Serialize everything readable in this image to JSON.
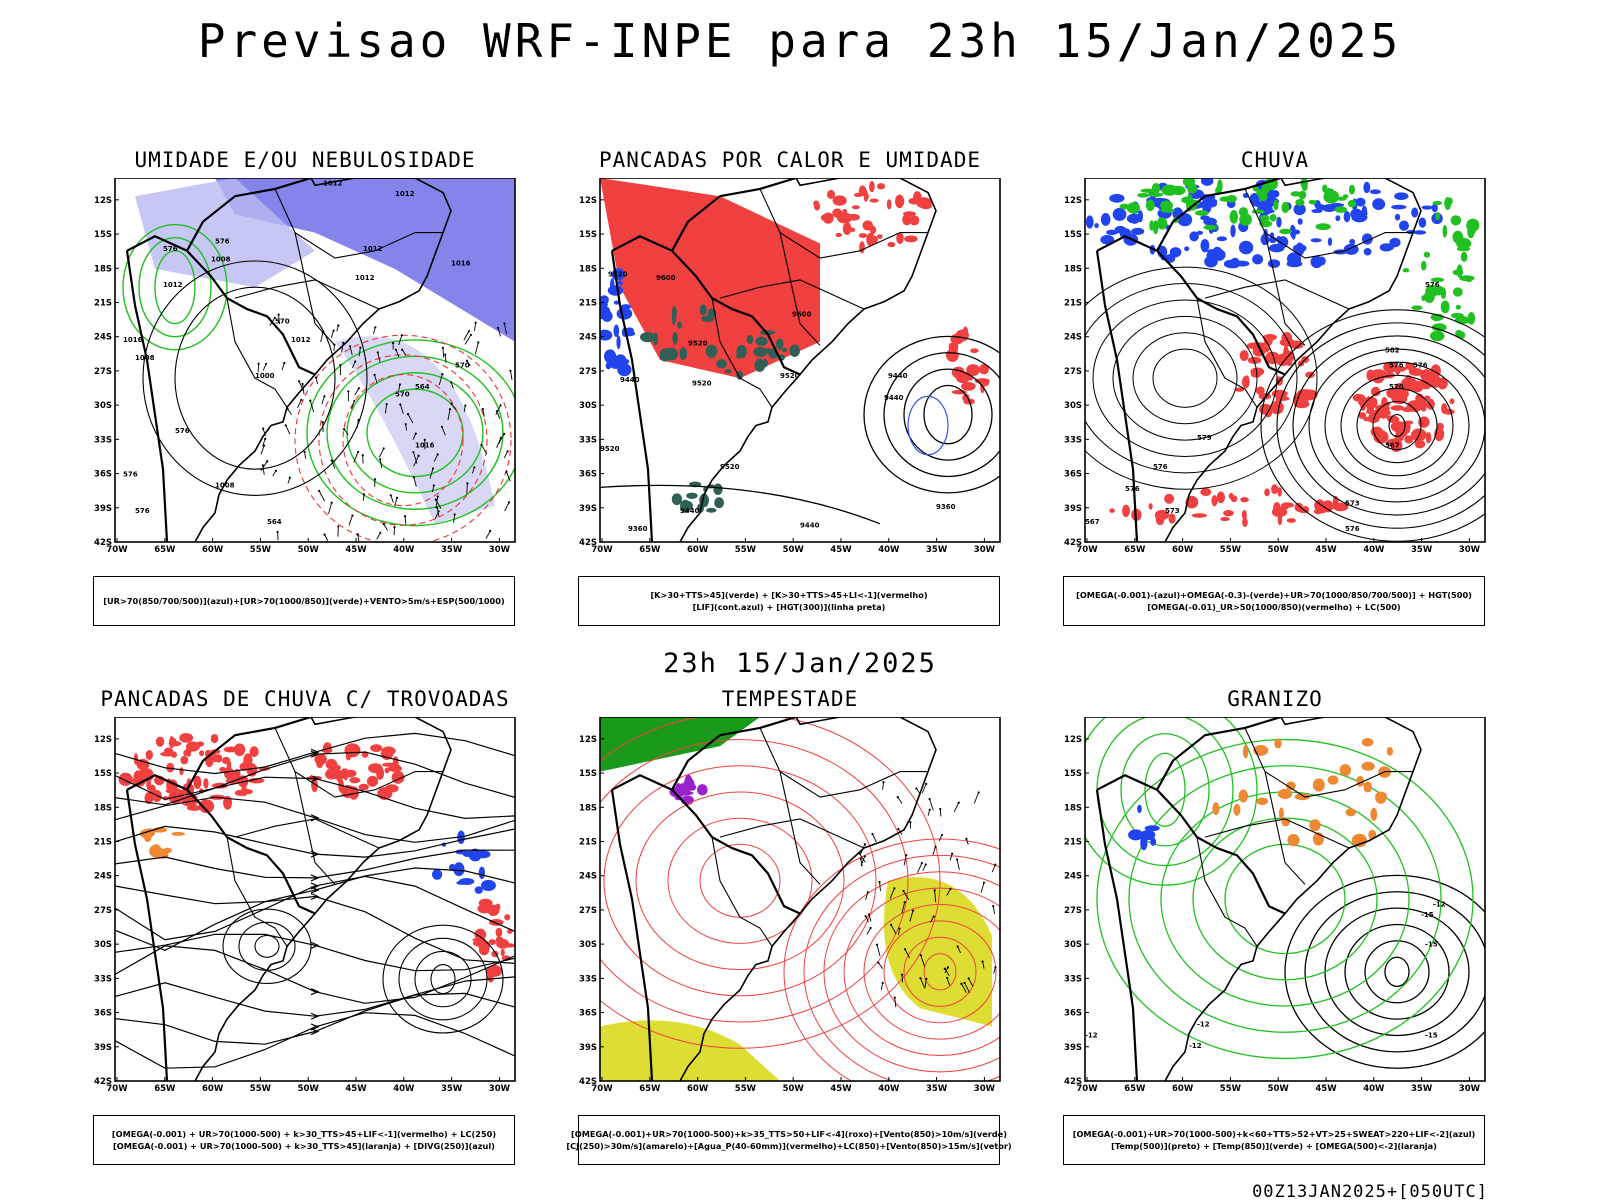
{
  "header": {
    "title": "Previsao WRF-INPE  para 23h 15/Jan/2025"
  },
  "mid_title": "23h 15/Jan/2025",
  "footer": "00Z13JAN2025+[050UTC]",
  "axes": {
    "lat_labels": [
      "12S",
      "15S",
      "18S",
      "21S",
      "24S",
      "27S",
      "30S",
      "33S",
      "36S",
      "39S",
      "42S"
    ],
    "lon_labels": [
      "70W",
      "65W",
      "60W",
      "55W",
      "50W",
      "45W",
      "40W",
      "35W",
      "30W"
    ]
  },
  "panels": [
    {
      "id": "umidade",
      "title": "UMIDADE E/OU NEBULOSIDADE",
      "legend": [
        "[UR>70(850/700/500)](azul)+[UR>70(1000/850)](verde)+VENTO>5m/s+ESP(500/1000)"
      ],
      "contour_labels": [
        "1012",
        "1012",
        "1012",
        "1008",
        "1012",
        "1012",
        "1016",
        "1000",
        "1012",
        "1008",
        "1016",
        "1016",
        "1008",
        "576",
        "576",
        "570",
        "570",
        "564",
        "570",
        "576",
        "576",
        "564",
        "576"
      ]
    },
    {
      "id": "pancadas_calor",
      "title": "PANCADAS POR CALOR E UMIDADE",
      "legend": [
        "[K>30+TTS>45](verde) + [K>30+TTS>45+LI<-1](vermelho)",
        "[LIF](cont.azul) + [HGT(300)](linha preta)"
      ],
      "contour_labels": [
        "9520",
        "9600",
        "9440",
        "9520",
        "9600",
        "9520",
        "9440",
        "9520",
        "9520",
        "9520",
        "9440",
        "9440",
        "9360",
        "9440",
        "9360"
      ]
    },
    {
      "id": "chuva",
      "title": "CHUVA",
      "legend": [
        "[OMEGA(-0.001)-(azul)+OMEGA(-0.3)-(verde)+UR>70(1000/850/700/500)] + HGT(500)",
        "[OMEGA(-0.01)_UR>50(1000/850)(vermelho) + LC(500)"
      ],
      "contour_labels": [
        "582",
        "576",
        "576",
        "570",
        "567",
        "579",
        "576",
        "576",
        "573",
        "573",
        "576",
        "576",
        "567"
      ]
    },
    {
      "id": "pancadas_trovoadas",
      "title": "PANCADAS DE CHUVA C/ TROVOADAS",
      "legend": [
        "[OMEGA(-0.001) + UR>70(1000-500) + k>30_TTS>45+LIF<-1](vermelho) + LC(250)",
        "[OMEGA(-0.001) + UR>70(1000-500) + k>30_TTS>45](laranja) + [DIVG(250)](azul)"
      ],
      "contour_labels": []
    },
    {
      "id": "tempestade",
      "title": "TEMPESTADE",
      "legend": [
        "[OMEGA(-0.001)+UR>70(1000-500)+k>35_TTS>50+LIF<-4](roxo)+[Vento(850)>10m/s](verde)",
        "[CJ(250)>30m/s](amarelo)+[Agua_P(40-60mm)](vermelho)+LC(850)+[Vento(850)>15m/s](vetor)"
      ],
      "contour_labels": []
    },
    {
      "id": "granizo",
      "title": "GRANIZO",
      "legend": [
        "[OMEGA(-0.001)+UR>70(1000-500)+k<60+TTS>52+VT>25+SWEAT>220+LIF<-2](azul)",
        "[Temp(500)](preto) + [Temp(850)](verde) + [OMEGA(500)<-2](laranja)"
      ],
      "contour_labels": [
        "-12",
        "-15",
        "-15",
        "-12",
        "-15",
        "-12",
        "-12"
      ]
    }
  ]
}
